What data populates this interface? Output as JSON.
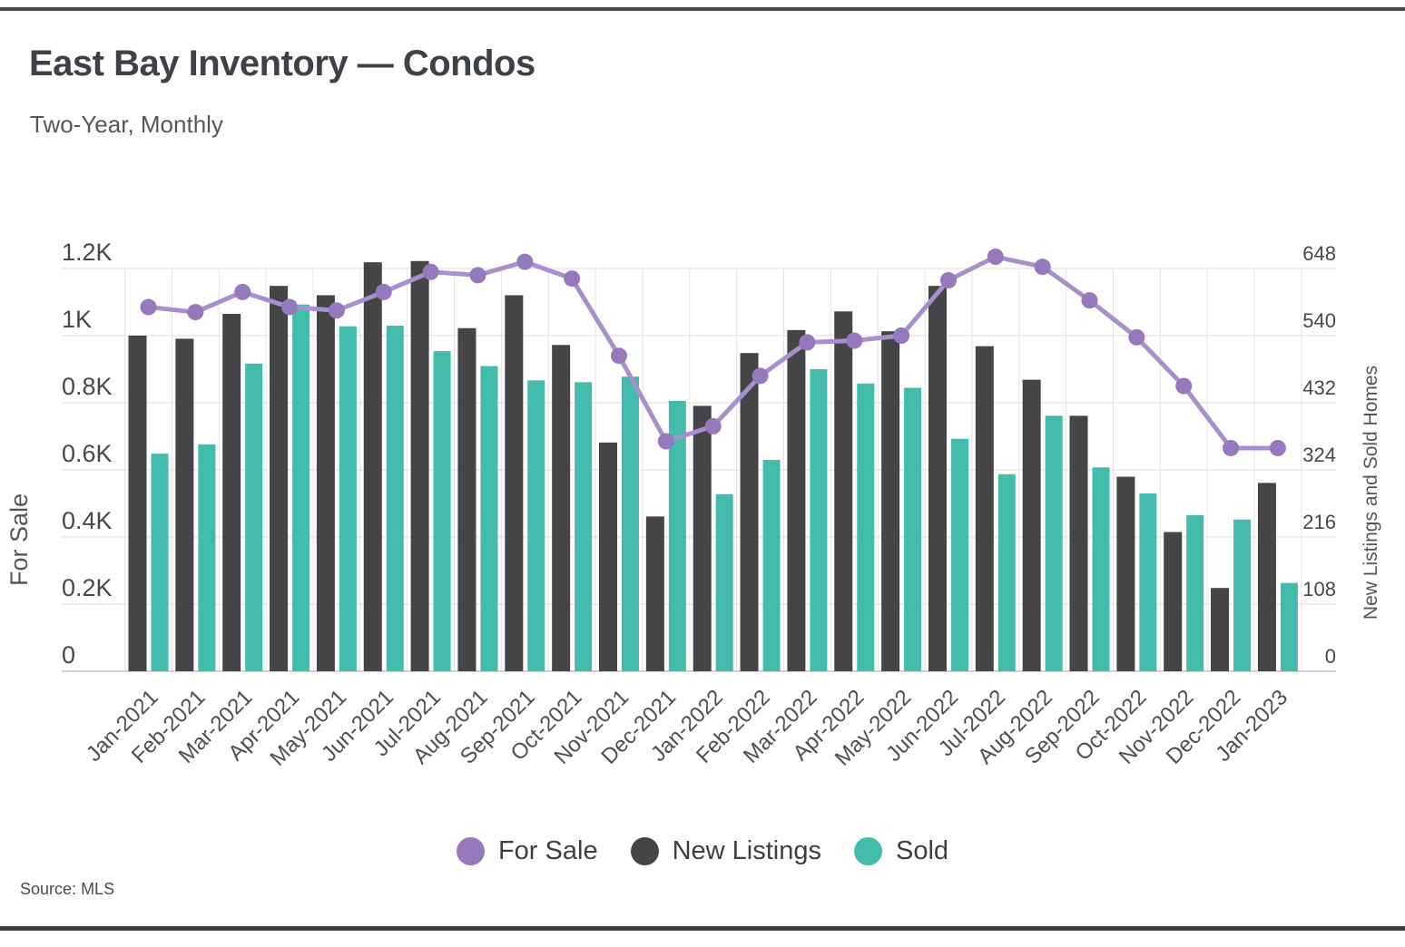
{
  "chart_data": {
    "type": "combo_bar_line",
    "title": "East Bay Inventory — Condos",
    "subtitle": "Two-Year, Monthly",
    "source": "Source: MLS",
    "grid": true,
    "legend_position": "bottom",
    "categories": [
      "Jan-2021",
      "Feb-2021",
      "Mar-2021",
      "Apr-2021",
      "May-2021",
      "Jun-2021",
      "Jul-2021",
      "Aug-2021",
      "Sep-2021",
      "Oct-2021",
      "Nov-2021",
      "Dec-2021",
      "Jan-2022",
      "Feb-2022",
      "Mar-2022",
      "Apr-2022",
      "May-2022",
      "Jun-2022",
      "Jul-2022",
      "Aug-2022",
      "Sep-2022",
      "Oct-2022",
      "Nov-2022",
      "Dec-2022",
      "Jan-2023"
    ],
    "y_left": {
      "label": "For Sale",
      "min": 0,
      "max": 1200,
      "ticks": [
        "1.2K",
        "1K",
        "0.8K",
        "0.6K",
        "0.4K",
        "0.2K",
        "0"
      ]
    },
    "y_right": {
      "label": "New Listings and Sold Homes",
      "min": 0,
      "max": 648,
      "ticks": [
        "648",
        "540",
        "432",
        "324",
        "216",
        "108",
        "0"
      ]
    },
    "series": [
      {
        "name": "For Sale",
        "type": "line",
        "axis": "left",
        "color": "#9678bc",
        "line_color": "#a88fd0",
        "values": [
          1085,
          1070,
          1130,
          1085,
          1075,
          1130,
          1190,
          1180,
          1220,
          1170,
          940,
          685,
          730,
          880,
          980,
          985,
          1000,
          1165,
          1235,
          1205,
          1105,
          995,
          850,
          665,
          665
        ]
      },
      {
        "name": "New Listings",
        "type": "bar",
        "axis": "right",
        "color": "#454547",
        "values": [
          540,
          535,
          575,
          620,
          605,
          658,
          660,
          552,
          605,
          525,
          368,
          249,
          427,
          512,
          549,
          579,
          547,
          620,
          523,
          469,
          411,
          313,
          224,
          134,
          303
        ]
      },
      {
        "name": "Sold",
        "type": "bar",
        "axis": "right",
        "color": "#43bcab",
        "values": [
          350,
          365,
          495,
          590,
          555,
          556,
          515,
          491,
          468,
          465,
          474,
          435,
          285,
          340,
          486,
          463,
          456,
          374,
          317,
          411,
          328,
          286,
          251,
          244,
          142
        ]
      }
    ]
  },
  "legend": {
    "items": [
      {
        "label": "For Sale",
        "color": "#9678bc"
      },
      {
        "label": "New Listings",
        "color": "#454547"
      },
      {
        "label": "Sold",
        "color": "#43bcab"
      }
    ]
  },
  "footer": {
    "source_label": "Source:",
    "source_value": "MLS"
  },
  "colors": {
    "grid": "#dcdcdc",
    "grid_vertical": "#e4e4e4",
    "axis_line": "#c4c4c6",
    "tick_label": "#46494d",
    "axis_title": "#53565a",
    "x_label": "#4c5054",
    "border": "#454648",
    "background": "#ffffff"
  }
}
